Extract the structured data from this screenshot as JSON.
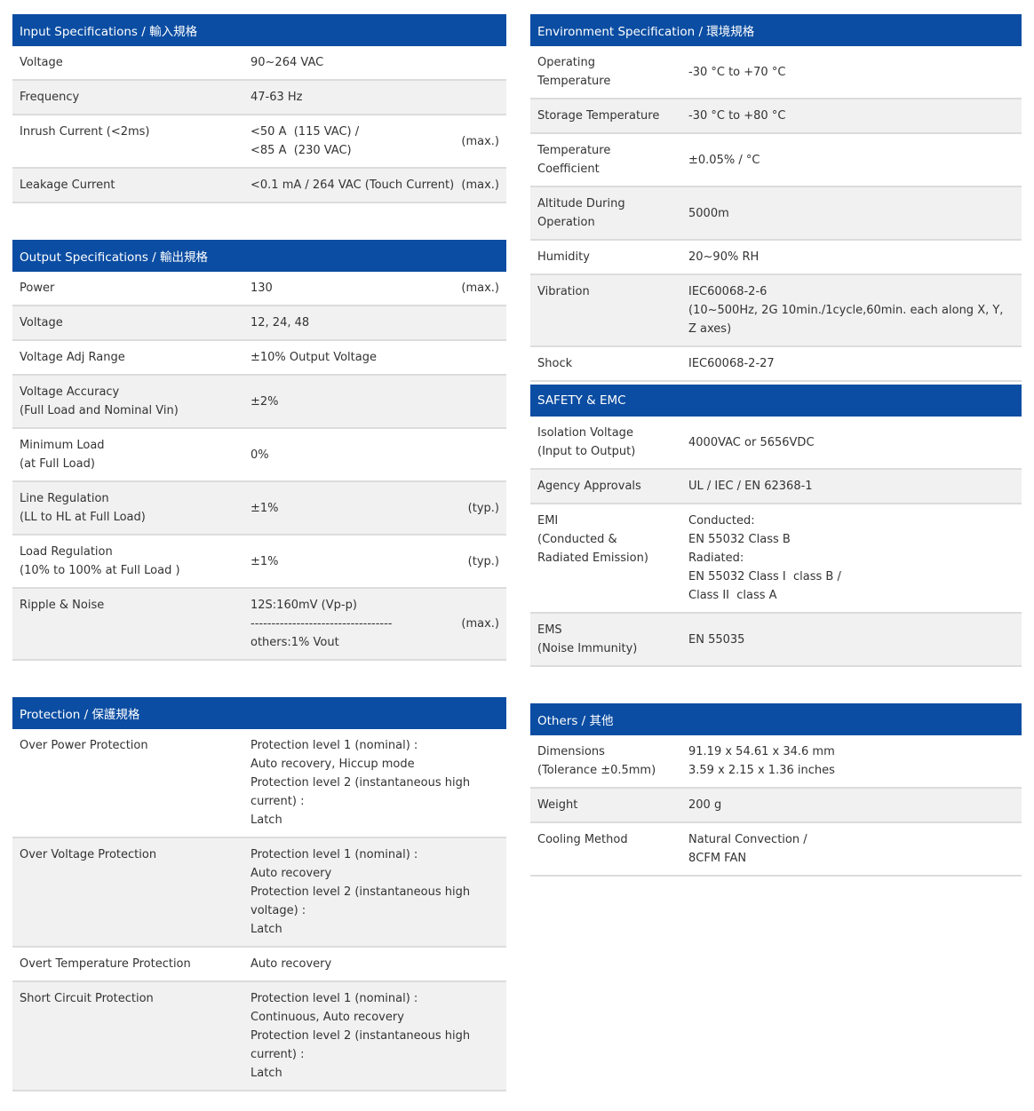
{
  "colors": {
    "header_bg": "#0b4da2",
    "header_text": "#ffffff",
    "stripe_bg": "#f1f1f1",
    "separator": "#dcdcdc",
    "text": "#333333"
  },
  "columns": {
    "left": [
      {
        "title": "Input Specifications / 輸入規格",
        "rows": [
          {
            "label": "Voltage",
            "value": "90~264 VAC",
            "note": ""
          },
          {
            "label": "Frequency",
            "value": "47-63 Hz",
            "note": ""
          },
          {
            "label": "Inrush Current (<2ms)",
            "value": "<50 A  (115 VAC) /\n<85 A  (230 VAC)",
            "note": "(max.)"
          },
          {
            "label": "Leakage Current",
            "value": "<0.1 mA / 264 VAC (Touch Current)",
            "note": "(max.)"
          }
        ]
      },
      {
        "title": "Output Specifications / 輸出規格",
        "rows": [
          {
            "label": "Power",
            "value": "130",
            "note": "(max.)"
          },
          {
            "label": "Voltage",
            "value": "12, 24, 48",
            "note": ""
          },
          {
            "label": "Voltage Adj Range",
            "value": "±10% Output Voltage",
            "note": ""
          },
          {
            "label": "Voltage Accuracy\n(Full Load and Nominal Vin)",
            "value": "±2%",
            "note": ""
          },
          {
            "label": "Minimum Load\n(at Full Load)",
            "value": "0%",
            "note": ""
          },
          {
            "label": "Line Regulation\n(LL to HL at Full Load)",
            "value": "±1%",
            "note": "(typ.)"
          },
          {
            "label": "Load Regulation\n(10% to 100% at Full Load )",
            "value": "±1%",
            "note": "(typ.)"
          },
          {
            "label": "Ripple & Noise",
            "value": "12S:160mV (Vp-p)\n----------------------------------\nothers:1% Vout",
            "note": "(max.)"
          }
        ]
      },
      {
        "title": "Protection / 保護規格",
        "rows": [
          {
            "label": "Over Power Protection",
            "value": "Protection level 1 (nominal) :\nAuto recovery, Hiccup mode\nProtection level 2 (instantaneous high current) :\nLatch",
            "note": ""
          },
          {
            "label": "Over Voltage Protection",
            "value": "Protection level 1 (nominal) :\nAuto recovery\nProtection level 2 (instantaneous high voltage) :\nLatch",
            "note": ""
          },
          {
            "label": "Overt Temperature Protection",
            "value": "Auto recovery",
            "note": ""
          },
          {
            "label": "Short Circuit Protection",
            "value": "Protection level 1 (nominal) :\nContinuous, Auto recovery\nProtection level 2 (instantaneous high current) :\nLatch",
            "note": ""
          }
        ]
      }
    ],
    "right": [
      {
        "title": "Environment Specification / 環境規格",
        "rows": [
          {
            "label": "Operating\nTemperature",
            "value": "-30 °C to +70 °C",
            "note": ""
          },
          {
            "label": "Storage Temperature",
            "value": "-30 °C to +80 °C",
            "note": ""
          },
          {
            "label": "Temperature\nCoefficient",
            "value": "±0.05% / °C",
            "note": ""
          },
          {
            "label": "Altitude During\nOperation",
            "value": "5000m",
            "note": ""
          },
          {
            "label": "Humidity",
            "value": "20~90% RH",
            "note": ""
          },
          {
            "label": "Vibration",
            "value": "IEC60068-2-6\n(10~500Hz, 2G 10min./1cycle,60min. each along X, Y, Z axes)",
            "note": ""
          },
          {
            "label": "Shock",
            "value": "IEC60068-2-27",
            "note": ""
          }
        ]
      },
      {
        "title": "SAFETY & EMC",
        "attached_to_previous": true,
        "rows": [
          {
            "label": "Isolation Voltage\n(Input to Output)",
            "value": "4000VAC or 5656VDC",
            "note": ""
          },
          {
            "label": "Agency Approvals",
            "value": "UL / IEC / EN 62368-1",
            "note": ""
          },
          {
            "label": "EMI\n(Conducted &\nRadiated Emission)",
            "value": "Conducted:\nEN 55032 Class B\nRadiated:\nEN 55032 Class I  class B /\nClass II  class A",
            "note": ""
          },
          {
            "label": "EMS\n(Noise Immunity)",
            "value": "EN 55035",
            "note": ""
          }
        ]
      },
      {
        "title": "Others / 其他",
        "rows": [
          {
            "label": "Dimensions\n(Tolerance ±0.5mm)",
            "value": "91.19 x 54.61 x 34.6 mm\n3.59 x 2.15 x 1.36 inches",
            "note": ""
          },
          {
            "label": "Weight",
            "value": "200 g",
            "note": ""
          },
          {
            "label": "Cooling Method",
            "value": "Natural Convection /\n8CFM FAN",
            "note": ""
          }
        ]
      }
    ]
  }
}
